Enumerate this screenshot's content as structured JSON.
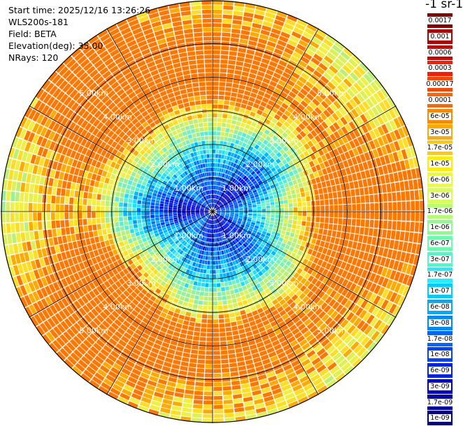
{
  "header": {
    "start_time": "Start time: 2025/12/16 13:26:26",
    "station": "WLS200s-181",
    "field": "Field: BETA",
    "elevation": "Elevation(deg): 35.00",
    "nrays": "NRays: 120"
  },
  "colorbar": {
    "title": "-1 sr-1",
    "labels": [
      "0.0017",
      "0.001",
      "0.0006",
      "0.0003",
      "0.00017",
      "0.0001",
      "6e-05",
      "3e-05",
      "1.7e-05",
      "1e-05",
      "6e-06",
      "3e-06",
      "1.7e-06",
      "1e-06",
      "6e-07",
      "3e-07",
      "1.7e-07",
      "1e-07",
      "6e-08",
      "3e-08",
      "1.7e-08",
      "1e-08",
      "6e-09",
      "3e-09",
      "1.7e-09",
      "1e-09"
    ],
    "colors": [
      "#8b0000",
      "#b30000",
      "#d60000",
      "#ff1a00",
      "#ff4400",
      "#ff6600",
      "#ff8800",
      "#ffaa00",
      "#ffcc00",
      "#ffee00",
      "#eeff22",
      "#d8ff55",
      "#b4ff6e",
      "#8cff8a",
      "#66ffaa",
      "#44ffcc",
      "#22eeff",
      "#00ccff",
      "#00aaff",
      "#0088ff",
      "#0066ff",
      "#0044ff",
      "#0022ee",
      "#0000dd",
      "#0000b0",
      "#000080"
    ]
  },
  "chart_data": {
    "type": "heatmap",
    "projection": "polar-ppi",
    "field": "BETA",
    "n_rays": 120,
    "elevation_deg": 35.0,
    "range_ring_labels": [
      "1.00km",
      "2.00km",
      "3.00km",
      "4.00km",
      "5.00km"
    ],
    "ring_ranges_km": [
      1,
      2,
      3,
      4,
      5
    ],
    "max_range_km": 6.3,
    "colorbar_levels": [
      0.0017,
      0.001,
      0.0006,
      0.0003,
      0.00017,
      0.0001,
      6e-05,
      3e-05,
      1.7e-05,
      1e-05,
      6e-06,
      3e-06,
      1.7e-06,
      1e-06,
      6e-07,
      3e-07,
      1.7e-07,
      1e-07,
      6e-08,
      3e-08,
      1.7e-08,
      1e-08,
      6e-09,
      3e-09,
      1.7e-09,
      1e-09
    ],
    "grid": true
  }
}
